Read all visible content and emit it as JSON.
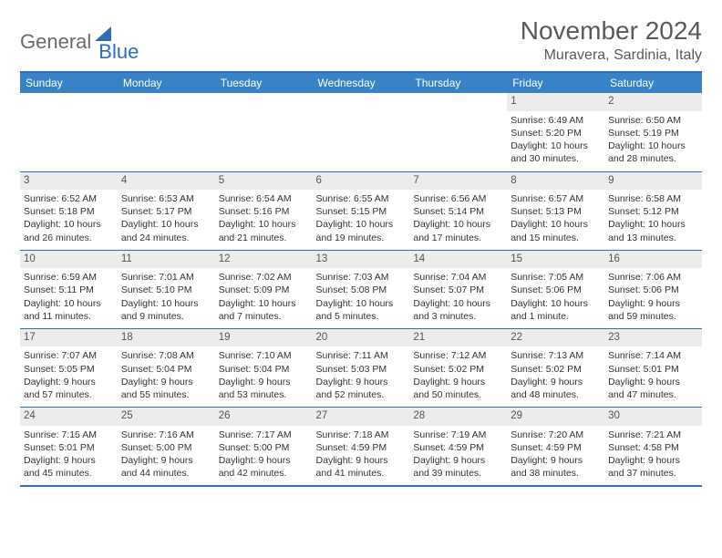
{
  "logo": {
    "text1": "General",
    "text2": "Blue"
  },
  "title": "November 2024",
  "location": "Muravera, Sardinia, Italy",
  "colors": {
    "header_bg": "#3783c6",
    "border": "#2d6fb5",
    "daynum_bg": "#ececec",
    "text": "#333333"
  },
  "day_headers": [
    "Sunday",
    "Monday",
    "Tuesday",
    "Wednesday",
    "Thursday",
    "Friday",
    "Saturday"
  ],
  "weeks": [
    [
      {
        "n": "",
        "sr": "",
        "ss": "",
        "d1": "",
        "d2": "",
        "empty": true
      },
      {
        "n": "",
        "sr": "",
        "ss": "",
        "d1": "",
        "d2": "",
        "empty": true
      },
      {
        "n": "",
        "sr": "",
        "ss": "",
        "d1": "",
        "d2": "",
        "empty": true
      },
      {
        "n": "",
        "sr": "",
        "ss": "",
        "d1": "",
        "d2": "",
        "empty": true
      },
      {
        "n": "",
        "sr": "",
        "ss": "",
        "d1": "",
        "d2": "",
        "empty": true
      },
      {
        "n": "1",
        "sr": "Sunrise: 6:49 AM",
        "ss": "Sunset: 5:20 PM",
        "d1": "Daylight: 10 hours",
        "d2": "and 30 minutes."
      },
      {
        "n": "2",
        "sr": "Sunrise: 6:50 AM",
        "ss": "Sunset: 5:19 PM",
        "d1": "Daylight: 10 hours",
        "d2": "and 28 minutes."
      }
    ],
    [
      {
        "n": "3",
        "sr": "Sunrise: 6:52 AM",
        "ss": "Sunset: 5:18 PM",
        "d1": "Daylight: 10 hours",
        "d2": "and 26 minutes."
      },
      {
        "n": "4",
        "sr": "Sunrise: 6:53 AM",
        "ss": "Sunset: 5:17 PM",
        "d1": "Daylight: 10 hours",
        "d2": "and 24 minutes."
      },
      {
        "n": "5",
        "sr": "Sunrise: 6:54 AM",
        "ss": "Sunset: 5:16 PM",
        "d1": "Daylight: 10 hours",
        "d2": "and 21 minutes."
      },
      {
        "n": "6",
        "sr": "Sunrise: 6:55 AM",
        "ss": "Sunset: 5:15 PM",
        "d1": "Daylight: 10 hours",
        "d2": "and 19 minutes."
      },
      {
        "n": "7",
        "sr": "Sunrise: 6:56 AM",
        "ss": "Sunset: 5:14 PM",
        "d1": "Daylight: 10 hours",
        "d2": "and 17 minutes."
      },
      {
        "n": "8",
        "sr": "Sunrise: 6:57 AM",
        "ss": "Sunset: 5:13 PM",
        "d1": "Daylight: 10 hours",
        "d2": "and 15 minutes."
      },
      {
        "n": "9",
        "sr": "Sunrise: 6:58 AM",
        "ss": "Sunset: 5:12 PM",
        "d1": "Daylight: 10 hours",
        "d2": "and 13 minutes."
      }
    ],
    [
      {
        "n": "10",
        "sr": "Sunrise: 6:59 AM",
        "ss": "Sunset: 5:11 PM",
        "d1": "Daylight: 10 hours",
        "d2": "and 11 minutes."
      },
      {
        "n": "11",
        "sr": "Sunrise: 7:01 AM",
        "ss": "Sunset: 5:10 PM",
        "d1": "Daylight: 10 hours",
        "d2": "and 9 minutes."
      },
      {
        "n": "12",
        "sr": "Sunrise: 7:02 AM",
        "ss": "Sunset: 5:09 PM",
        "d1": "Daylight: 10 hours",
        "d2": "and 7 minutes."
      },
      {
        "n": "13",
        "sr": "Sunrise: 7:03 AM",
        "ss": "Sunset: 5:08 PM",
        "d1": "Daylight: 10 hours",
        "d2": "and 5 minutes."
      },
      {
        "n": "14",
        "sr": "Sunrise: 7:04 AM",
        "ss": "Sunset: 5:07 PM",
        "d1": "Daylight: 10 hours",
        "d2": "and 3 minutes."
      },
      {
        "n": "15",
        "sr": "Sunrise: 7:05 AM",
        "ss": "Sunset: 5:06 PM",
        "d1": "Daylight: 10 hours",
        "d2": "and 1 minute."
      },
      {
        "n": "16",
        "sr": "Sunrise: 7:06 AM",
        "ss": "Sunset: 5:06 PM",
        "d1": "Daylight: 9 hours",
        "d2": "and 59 minutes."
      }
    ],
    [
      {
        "n": "17",
        "sr": "Sunrise: 7:07 AM",
        "ss": "Sunset: 5:05 PM",
        "d1": "Daylight: 9 hours",
        "d2": "and 57 minutes."
      },
      {
        "n": "18",
        "sr": "Sunrise: 7:08 AM",
        "ss": "Sunset: 5:04 PM",
        "d1": "Daylight: 9 hours",
        "d2": "and 55 minutes."
      },
      {
        "n": "19",
        "sr": "Sunrise: 7:10 AM",
        "ss": "Sunset: 5:04 PM",
        "d1": "Daylight: 9 hours",
        "d2": "and 53 minutes."
      },
      {
        "n": "20",
        "sr": "Sunrise: 7:11 AM",
        "ss": "Sunset: 5:03 PM",
        "d1": "Daylight: 9 hours",
        "d2": "and 52 minutes."
      },
      {
        "n": "21",
        "sr": "Sunrise: 7:12 AM",
        "ss": "Sunset: 5:02 PM",
        "d1": "Daylight: 9 hours",
        "d2": "and 50 minutes."
      },
      {
        "n": "22",
        "sr": "Sunrise: 7:13 AM",
        "ss": "Sunset: 5:02 PM",
        "d1": "Daylight: 9 hours",
        "d2": "and 48 minutes."
      },
      {
        "n": "23",
        "sr": "Sunrise: 7:14 AM",
        "ss": "Sunset: 5:01 PM",
        "d1": "Daylight: 9 hours",
        "d2": "and 47 minutes."
      }
    ],
    [
      {
        "n": "24",
        "sr": "Sunrise: 7:15 AM",
        "ss": "Sunset: 5:01 PM",
        "d1": "Daylight: 9 hours",
        "d2": "and 45 minutes."
      },
      {
        "n": "25",
        "sr": "Sunrise: 7:16 AM",
        "ss": "Sunset: 5:00 PM",
        "d1": "Daylight: 9 hours",
        "d2": "and 44 minutes."
      },
      {
        "n": "26",
        "sr": "Sunrise: 7:17 AM",
        "ss": "Sunset: 5:00 PM",
        "d1": "Daylight: 9 hours",
        "d2": "and 42 minutes."
      },
      {
        "n": "27",
        "sr": "Sunrise: 7:18 AM",
        "ss": "Sunset: 4:59 PM",
        "d1": "Daylight: 9 hours",
        "d2": "and 41 minutes."
      },
      {
        "n": "28",
        "sr": "Sunrise: 7:19 AM",
        "ss": "Sunset: 4:59 PM",
        "d1": "Daylight: 9 hours",
        "d2": "and 39 minutes."
      },
      {
        "n": "29",
        "sr": "Sunrise: 7:20 AM",
        "ss": "Sunset: 4:59 PM",
        "d1": "Daylight: 9 hours",
        "d2": "and 38 minutes."
      },
      {
        "n": "30",
        "sr": "Sunrise: 7:21 AM",
        "ss": "Sunset: 4:58 PM",
        "d1": "Daylight: 9 hours",
        "d2": "and 37 minutes."
      }
    ]
  ]
}
